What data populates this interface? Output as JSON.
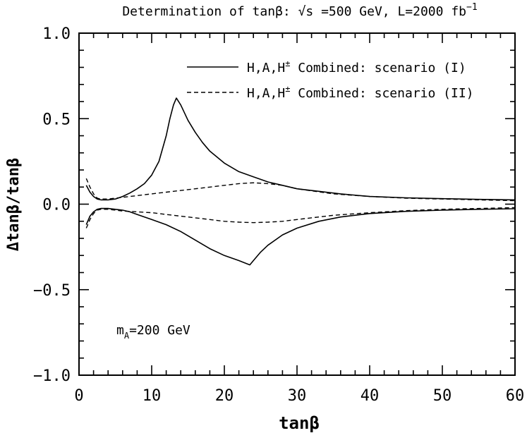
{
  "chart_data": {
    "type": "line",
    "title": "Determination of tanβ: √s =500 GeV, L=2000 fb",
    "title_superscript": "−1",
    "xlabel": "tanβ",
    "ylabel": "Δtanβ/tanβ",
    "xlim": [
      0,
      60
    ],
    "ylim": [
      -1.0,
      1.0
    ],
    "x_ticks": [
      0,
      10,
      20,
      30,
      40,
      50,
      60
    ],
    "x_tick_labels": [
      "0",
      "10",
      "20",
      "30",
      "40",
      "50",
      "60"
    ],
    "y_ticks": [
      -1.0,
      -0.5,
      0.0,
      0.5,
      1.0
    ],
    "y_tick_labels": [
      "−1.0",
      "−0.5",
      "0.0",
      "0.5",
      "1.0"
    ],
    "annotation": {
      "text": "m",
      "subscript": "A",
      "suffix": "=200 GeV"
    },
    "legend": [
      {
        "name": "H,A,H",
        "sup": "±",
        "suffix": " Combined: scenario (I)",
        "style": "solid"
      },
      {
        "name": "H,A,H",
        "sup": "±",
        "suffix": " Combined: scenario (II)",
        "style": "dashed"
      }
    ],
    "series": [
      {
        "name": "scenario (I) upper",
        "style": "solid",
        "x": [
          1,
          1.5,
          2,
          2.5,
          3,
          4,
          5,
          6,
          7,
          8,
          9,
          10,
          11,
          12,
          12.5,
          13,
          13.4,
          14,
          15,
          16,
          17,
          18,
          20,
          22,
          24,
          26,
          28,
          30,
          33,
          36,
          40,
          45,
          50,
          55,
          60
        ],
        "y": [
          0.11,
          0.07,
          0.045,
          0.03,
          0.025,
          0.025,
          0.03,
          0.045,
          0.065,
          0.09,
          0.12,
          0.17,
          0.25,
          0.4,
          0.5,
          0.58,
          0.62,
          0.58,
          0.49,
          0.42,
          0.36,
          0.31,
          0.24,
          0.19,
          0.16,
          0.13,
          0.11,
          0.09,
          0.075,
          0.06,
          0.045,
          0.037,
          0.032,
          0.028,
          0.025
        ]
      },
      {
        "name": "scenario (I) lower",
        "style": "solid",
        "x": [
          1,
          1.5,
          2,
          2.5,
          3,
          4,
          5,
          6,
          7,
          8,
          10,
          12,
          14,
          16,
          18,
          20,
          22,
          23.5,
          24,
          25,
          26,
          28,
          30,
          33,
          36,
          40,
          45,
          50,
          55,
          60
        ],
        "y": [
          -0.12,
          -0.07,
          -0.045,
          -0.03,
          -0.025,
          -0.025,
          -0.03,
          -0.035,
          -0.045,
          -0.06,
          -0.09,
          -0.12,
          -0.16,
          -0.21,
          -0.26,
          -0.3,
          -0.33,
          -0.355,
          -0.33,
          -0.28,
          -0.24,
          -0.18,
          -0.14,
          -0.1,
          -0.075,
          -0.055,
          -0.042,
          -0.035,
          -0.03,
          -0.027
        ]
      },
      {
        "name": "scenario (II) upper",
        "style": "dashed",
        "x": [
          1,
          1.5,
          2,
          2.5,
          3,
          4,
          5,
          6,
          8,
          10,
          12,
          14,
          16,
          18,
          20,
          22,
          24,
          26,
          28,
          30,
          35,
          40,
          45,
          50,
          55,
          60
        ],
        "y": [
          0.15,
          0.1,
          0.06,
          0.035,
          0.03,
          0.03,
          0.035,
          0.04,
          0.05,
          0.06,
          0.07,
          0.08,
          0.09,
          0.1,
          0.11,
          0.12,
          0.125,
          0.12,
          0.11,
          0.09,
          0.06,
          0.045,
          0.035,
          0.03,
          0.025,
          0.02
        ]
      },
      {
        "name": "scenario (II) lower",
        "style": "dashed",
        "x": [
          1,
          1.5,
          2,
          2.5,
          3,
          4,
          5,
          6,
          8,
          10,
          12,
          14,
          16,
          18,
          20,
          22,
          24,
          26,
          28,
          30,
          35,
          40,
          45,
          50,
          55,
          60
        ],
        "y": [
          -0.14,
          -0.09,
          -0.055,
          -0.035,
          -0.03,
          -0.03,
          -0.035,
          -0.04,
          -0.045,
          -0.05,
          -0.06,
          -0.07,
          -0.08,
          -0.09,
          -0.1,
          -0.105,
          -0.108,
          -0.105,
          -0.1,
          -0.09,
          -0.065,
          -0.05,
          -0.038,
          -0.03,
          -0.025,
          -0.02
        ]
      }
    ]
  }
}
